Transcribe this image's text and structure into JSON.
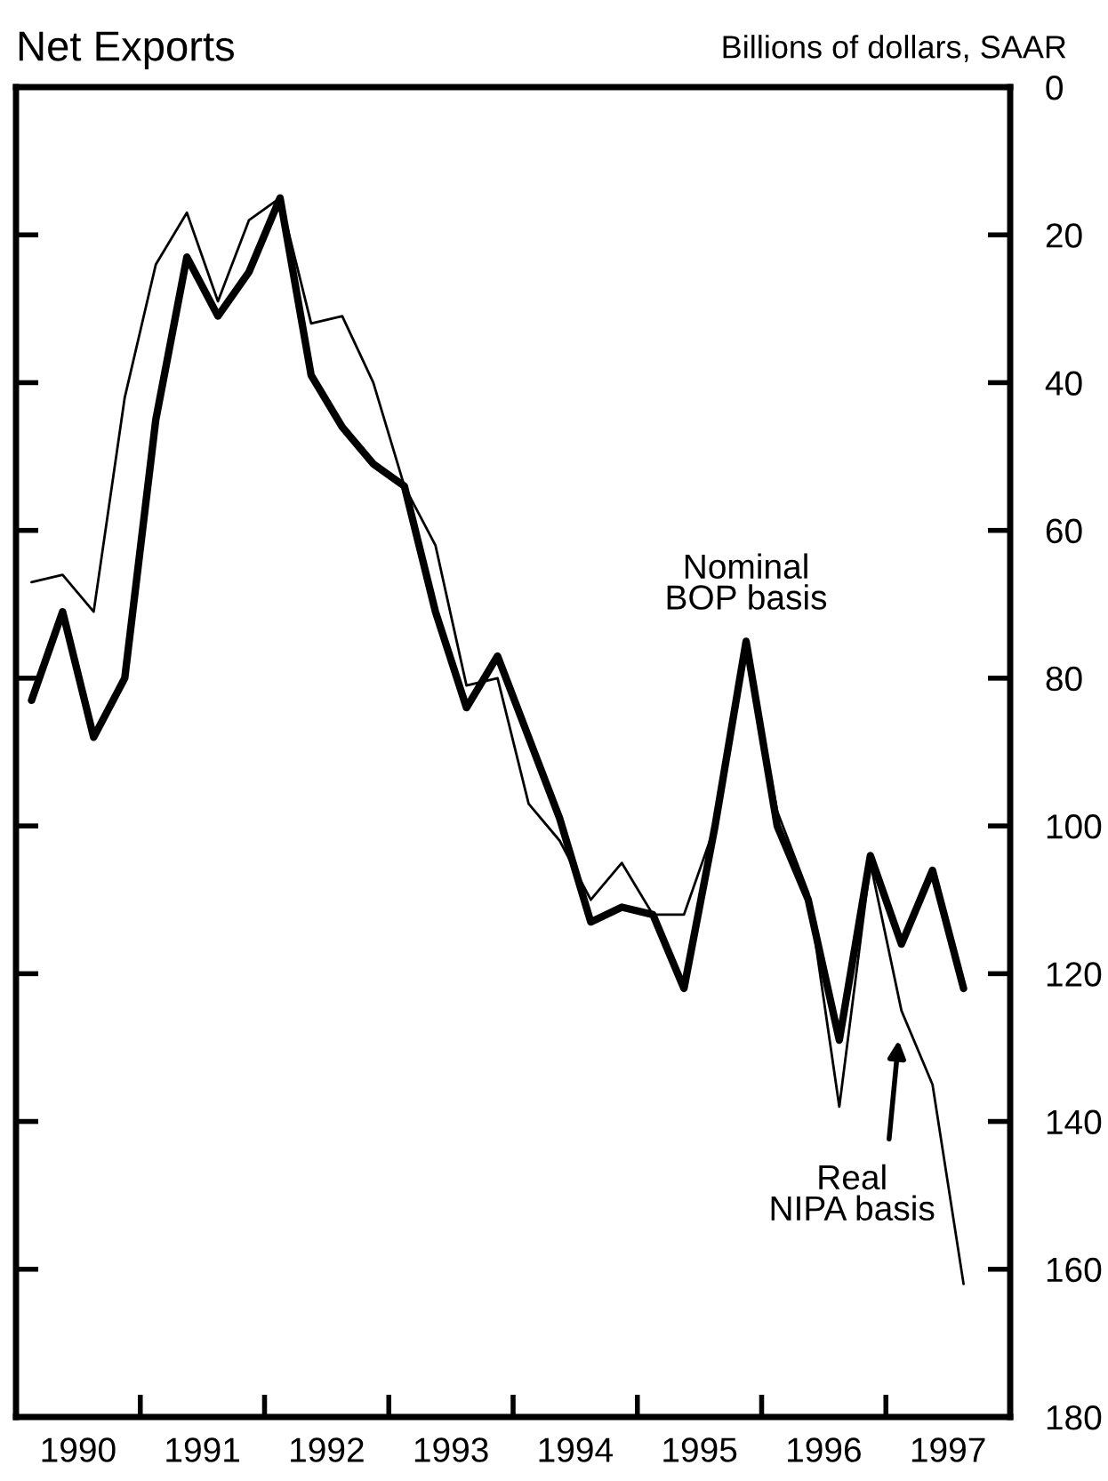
{
  "chart_data": {
    "type": "line",
    "title": "Net Exports",
    "ylabel": "Billions of dollars, SAAR",
    "x": [
      1990.125,
      1990.375,
      1990.625,
      1990.875,
      1991.125,
      1991.375,
      1991.625,
      1991.875,
      1992.125,
      1992.375,
      1992.625,
      1992.875,
      1993.125,
      1993.375,
      1993.625,
      1993.875,
      1994.125,
      1994.375,
      1994.625,
      1994.875,
      1995.125,
      1995.375,
      1995.625,
      1995.875,
      1996.125,
      1996.375,
      1996.625,
      1996.875,
      1997.125,
      1997.375,
      1997.625
    ],
    "series": [
      {
        "name": "Nominal\nBOP basis",
        "color": "#000000",
        "values": [
          83,
          71,
          88,
          80,
          45,
          23,
          31,
          25,
          15,
          39,
          46,
          51,
          54,
          71,
          84,
          77,
          88,
          99,
          113,
          111,
          112,
          122,
          100,
          75,
          100,
          110,
          129,
          104,
          116,
          106,
          122
        ]
      },
      {
        "name": "Real\nNIPA basis",
        "color": "#000000",
        "values": [
          67,
          66,
          71,
          42,
          24,
          17,
          29,
          18,
          15,
          32,
          31,
          40,
          54,
          62,
          81,
          80,
          97,
          102,
          110,
          105,
          112,
          112,
          100,
          75,
          98,
          109,
          138,
          105,
          125,
          135,
          162
        ]
      }
    ],
    "xlim": [
      1990,
      1998
    ],
    "xticks": [
      {
        "value": 1990.5,
        "label": "1990"
      },
      {
        "value": 1991.5,
        "label": "1991"
      },
      {
        "value": 1992.5,
        "label": "1992"
      },
      {
        "value": 1993.5,
        "label": "1993"
      },
      {
        "value": 1994.5,
        "label": "1994"
      },
      {
        "value": 1995.5,
        "label": "1995"
      },
      {
        "value": 1996.5,
        "label": "1996"
      },
      {
        "value": 1997.5,
        "label": "1997"
      }
    ],
    "ylim": [
      180,
      0
    ],
    "yticks": [
      0,
      20,
      40,
      60,
      80,
      100,
      120,
      140,
      160,
      180
    ],
    "grid": false
  }
}
